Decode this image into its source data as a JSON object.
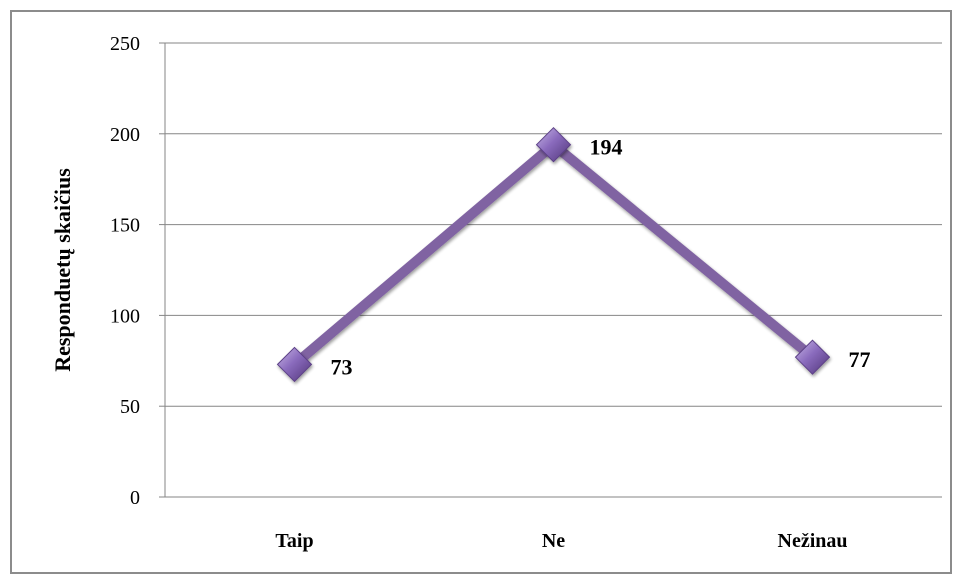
{
  "chart_data": {
    "type": "line",
    "categories": [
      "Taip",
      "Ne",
      "Nežinau"
    ],
    "series": [
      {
        "values": [
          73,
          194,
          77
        ]
      }
    ],
    "data_labels": [
      "73",
      "194",
      "77"
    ],
    "title": "",
    "xlabel": "",
    "ylabel": "Responduetų skaičius",
    "ylim": [
      0,
      250
    ],
    "yticks": [
      0,
      50,
      100,
      150,
      200,
      250
    ],
    "grid": true,
    "legend": "none",
    "colors": {
      "line": "#8064a2",
      "marker": "#8064a2",
      "grid": "#868686",
      "frame": "#8c8c8c"
    }
  }
}
